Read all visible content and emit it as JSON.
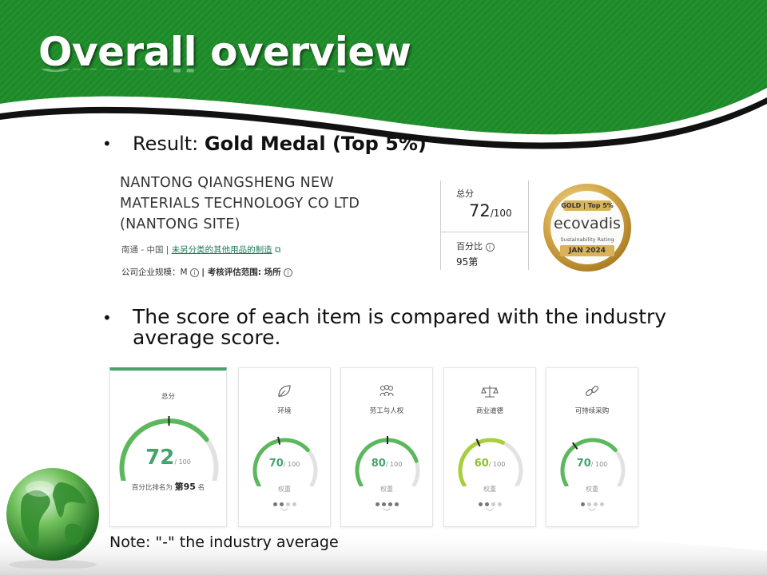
{
  "slide": {
    "title": "Overall overview",
    "colors": {
      "banner_green": "#1f8a2a",
      "accent_green": "#46a36e",
      "lime": "#a8cf3a"
    }
  },
  "bullets": {
    "first_prefix": "Result: ",
    "first_bold": "Gold Medal (Top 5%)",
    "second": "The score of each item is compared with the industry average score."
  },
  "company": {
    "name": "NANTONG QIANGSHENG NEW MATERIALS TECHNOLOGY CO LTD (NANTONG SITE)",
    "location": "南通 - 中国 |",
    "category_link": "未另分类的其他用品的制造",
    "size_label": "公司企业规模：",
    "size_value": "M",
    "scope_label": "| 考核评估范围: ",
    "scope_value": "场所"
  },
  "score_box": {
    "total_label": "总分",
    "score": "72",
    "score_den": "/100",
    "percentile_label": "百分比",
    "rank": "95第"
  },
  "medal": {
    "top_text": "GOLD | Top 5%",
    "brand": "ecovadis",
    "subtitle": "Sustainability Rating",
    "date": "JAN 2024"
  },
  "cards": [
    {
      "title": "总分",
      "value": "72",
      "den": "/ 100",
      "rank_prefix": "百分比排名为",
      "rank_value": "第95",
      "rank_suffix": "名",
      "icon": "none",
      "score": 72,
      "industry_avg": 50
    },
    {
      "title": "环境",
      "value": "70",
      "den": "/ 100",
      "weight_label": "权重",
      "icon": "leaf-icon",
      "score": 70,
      "industry_avg": 45,
      "weight_dots": 2
    },
    {
      "title": "劳工与人权",
      "value": "80",
      "den": "/ 100",
      "weight_label": "权重",
      "icon": "people-icon",
      "score": 80,
      "industry_avg": 50,
      "weight_dots": 4
    },
    {
      "title": "商业道德",
      "value": "60",
      "den": "/ 100",
      "weight_label": "权重",
      "icon": "scale-icon",
      "score": 60,
      "industry_avg": 40,
      "weight_dots": 2
    },
    {
      "title": "可持续采购",
      "value": "70",
      "den": "/ 100",
      "weight_label": "权重",
      "icon": "link-icon",
      "score": 70,
      "industry_avg": 35,
      "weight_dots": 1
    }
  ],
  "note": "Note: \"-\" the industry average"
}
